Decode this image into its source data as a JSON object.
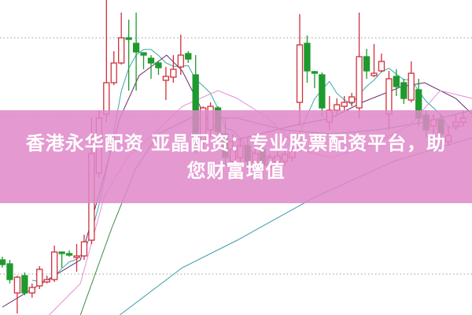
{
  "banner": {
    "line1": "香港永华配资 亚晶配资：专业股票配资平台，助",
    "line2": "您财富增值"
  },
  "colors": {
    "up": "#d0303a",
    "down": "#1e9a2e",
    "grid": "#9a9a9a",
    "banner": "#e088c8"
  },
  "chart_data": {
    "type": "candlestick",
    "title": "",
    "xlabel": "",
    "ylabel": "",
    "ylim": [
      0,
      100
    ],
    "grid": "horizontal-dotted",
    "gridlines": [
      13,
      63,
      88
    ],
    "candles": [
      [
        17.5,
        18.5,
        15,
        16
      ],
      [
        16.25,
        17.5,
        10,
        11.25
      ],
      [
        7,
        12.5,
        0.5,
        12
      ],
      [
        12.5,
        13.5,
        6.25,
        7
      ],
      [
        7,
        10,
        5.5,
        8.75
      ],
      [
        9.25,
        15.5,
        8.25,
        14.5
      ],
      [
        10.5,
        12.5,
        10,
        11.25
      ],
      [
        11.25,
        22,
        10.5,
        20
      ],
      [
        20,
        20,
        15,
        19.5
      ],
      [
        19.5,
        20.5,
        18.5,
        19
      ],
      [
        18.25,
        22.5,
        13.75,
        18.75
      ],
      [
        18.75,
        25.5,
        17.5,
        23.25
      ],
      [
        23.75,
        62.5,
        22.5,
        51.25
      ],
      [
        45,
        65,
        43.75,
        62.5
      ],
      [
        63.75,
        100,
        61.25,
        73.75
      ],
      [
        73.75,
        83.75,
        73,
        80
      ],
      [
        80,
        96,
        79.5,
        88
      ],
      [
        88,
        93.75,
        71.25,
        87.5
      ],
      [
        86.25,
        96,
        71.25,
        83.5
      ],
      [
        83.25,
        83.25,
        78,
        82.5
      ],
      [
        81.5,
        82.5,
        75,
        80
      ],
      [
        80,
        80.5,
        76.25,
        78.5
      ],
      [
        74.5,
        78.75,
        68.25,
        75.75
      ],
      [
        75.5,
        82.5,
        73.75,
        78
      ],
      [
        78.75,
        89,
        76.25,
        82.5
      ],
      [
        83,
        83.75,
        80,
        81.25
      ],
      [
        76.25,
        82.5,
        51.25,
        56.25
      ],
      [
        55,
        66.25,
        52.5,
        65.75
      ],
      [
        58.75,
        67.5,
        56.25,
        66.25
      ],
      [
        65.75,
        66.25,
        55,
        58.25
      ],
      [
        57.5,
        62.5,
        47.5,
        50
      ],
      [
        48.75,
        57.5,
        46.25,
        52.5
      ],
      [
        50,
        56.25,
        47.5,
        53.75
      ],
      [
        53.75,
        56.25,
        46.25,
        48.75
      ],
      [
        48,
        53.75,
        45,
        51.25
      ],
      [
        52.5,
        55,
        43.75,
        47.5
      ],
      [
        47,
        51.25,
        44.5,
        50
      ],
      [
        48.5,
        52,
        47,
        50.5
      ],
      [
        48.75,
        53,
        47.5,
        51
      ],
      [
        50,
        53.75,
        48.75,
        52
      ],
      [
        67.5,
        95.5,
        60,
        85.75
      ],
      [
        86.25,
        88.75,
        73.75,
        77.5
      ],
      [
        77.25,
        77.5,
        72,
        76.75
      ],
      [
        76.25,
        77,
        63,
        65.75
      ],
      [
        61.25,
        69.5,
        58.75,
        65
      ],
      [
        65,
        68.75,
        63.75,
        66.75
      ],
      [
        66.25,
        69.5,
        65,
        67.5
      ],
      [
        67.5,
        70.5,
        66.25,
        69.25
      ],
      [
        65.75,
        96,
        62.5,
        82
      ],
      [
        82,
        84.5,
        75,
        77.5
      ],
      [
        76,
        86,
        75.5,
        76.75
      ],
      [
        77.5,
        83,
        77,
        80.5
      ],
      [
        63.75,
        77.5,
        58.75,
        75
      ],
      [
        75.75,
        78,
        69.5,
        72.5
      ],
      [
        73.75,
        75,
        67,
        68.75
      ],
      [
        68.25,
        80.5,
        67.5,
        76.75
      ],
      [
        71.5,
        75,
        60,
        62.5
      ],
      [
        63.5,
        65,
        56.25,
        58.75
      ],
      [
        60,
        63.75,
        57.5,
        62
      ],
      [
        62,
        63.75,
        55.5,
        57.5
      ],
      [
        55,
        60,
        53.75,
        57
      ],
      [
        60,
        63.75,
        58.75,
        61.25
      ],
      [
        61.25,
        65,
        60,
        62.5
      ]
    ],
    "candle_format": [
      "open",
      "high",
      "low",
      "close"
    ],
    "moving_averages": [
      {
        "color": "#3aa8a8",
        "period": 5
      },
      {
        "color": "#6a2a6a",
        "points": [
          [
            0,
            2.5
          ],
          [
            10.5,
            17.5
          ],
          [
            13.2,
            40
          ],
          [
            15.8,
            62.5
          ],
          [
            18.4,
            76
          ],
          [
            22.1,
            82.5
          ],
          [
            24.2,
            77.5
          ],
          [
            27.4,
            62.5
          ],
          [
            30.5,
            55
          ],
          [
            34.7,
            57.5
          ],
          [
            38.9,
            60
          ],
          [
            44.2,
            62.5
          ],
          [
            48.4,
            67.5
          ],
          [
            53.7,
            72.5
          ],
          [
            56.8,
            73.75
          ],
          [
            61,
            68.75
          ],
          [
            63.2,
            63.75
          ]
        ]
      },
      {
        "color": "#e090d8",
        "points": [
          [
            6.3,
            0
          ],
          [
            10.5,
            10
          ],
          [
            13.7,
            37.5
          ],
          [
            16.8,
            50
          ],
          [
            21,
            58.75
          ],
          [
            24.2,
            66.25
          ],
          [
            29,
            71.25
          ],
          [
            31.6,
            68.75
          ],
          [
            35.8,
            62.5
          ],
          [
            40,
            52.5
          ],
          [
            44.2,
            50
          ],
          [
            49.5,
            53.75
          ],
          [
            54.7,
            60
          ],
          [
            58.9,
            71.25
          ],
          [
            63.2,
            68.75
          ]
        ]
      },
      {
        "color": "#3a8a3a",
        "points": [
          [
            10.5,
            0
          ],
          [
            14.7,
            27.5
          ],
          [
            17.9,
            46.25
          ],
          [
            21,
            57.5
          ],
          [
            25.3,
            62.5
          ],
          [
            31.6,
            62.5
          ],
          [
            37.9,
            58.75
          ],
          [
            44.2,
            57.5
          ],
          [
            50.5,
            58.75
          ],
          [
            56.8,
            61.25
          ],
          [
            63.2,
            65
          ]
        ]
      },
      {
        "color": "#3a9aa8",
        "points": [
          [
            15.8,
            0
          ],
          [
            24.2,
            15
          ],
          [
            31.6,
            23.75
          ],
          [
            42.1,
            37.5
          ],
          [
            52.6,
            48.75
          ],
          [
            63.2,
            56.25
          ]
        ]
      }
    ]
  }
}
